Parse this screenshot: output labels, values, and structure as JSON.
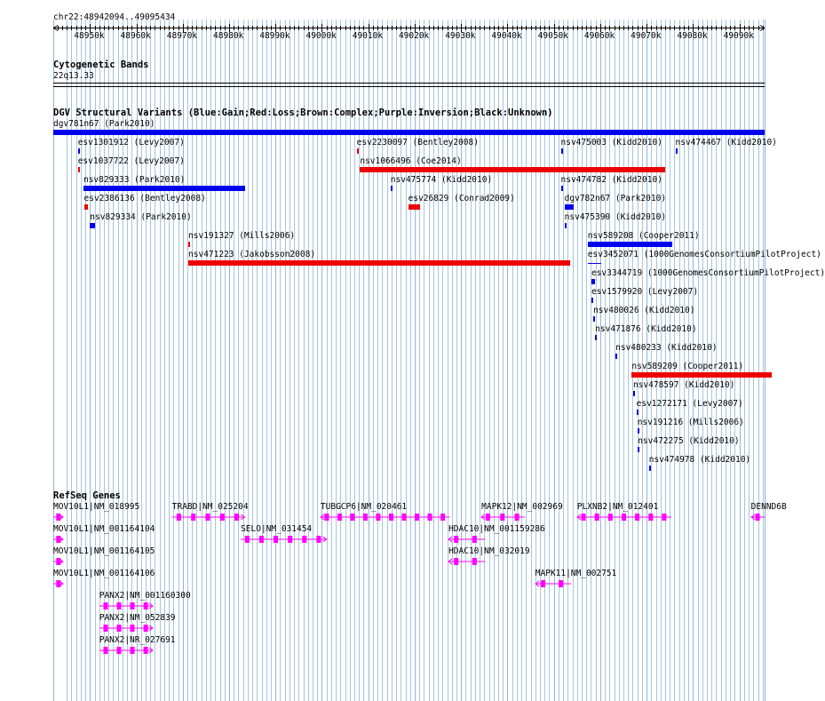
{
  "colors": {
    "gain": "#0000ee",
    "loss": "#ee0000",
    "gene": "#ff00ff",
    "grid": "#a7c5dd",
    "track_line": "#000000"
  },
  "ruler": {
    "location": "chr22:48942094..49095434",
    "ticks": [
      "48950k",
      "48960k",
      "48970k",
      "48980k",
      "48990k",
      "49000k",
      "49010k",
      "49020k",
      "49030k",
      "49040k",
      "49050k",
      "49060k",
      "49070k",
      "49080k",
      "49090k"
    ]
  },
  "cytobands": {
    "title": "Cytogenetic Bands",
    "band": "22q13.33"
  },
  "dgv": {
    "title": "DGV Structural Variants (Blue:Gain;Red:Loss;Brown:Complex;Purple:Inversion;Black:Unknown)",
    "variants": [
      {
        "label": "dgv781n67 (Park2010)",
        "type": "gain",
        "row": 0,
        "start": 48942094,
        "end": 49095434
      },
      {
        "label": "esv1301912 (Levy2007)",
        "type": "gain",
        "row": 1,
        "start": 48947400,
        "end": 48947700
      },
      {
        "label": "esv2230097 (Bentley2008)",
        "type": "loss",
        "row": 1,
        "start": 49007500,
        "end": 49007900
      },
      {
        "label": "nsv475003 (Kidd2010)",
        "type": "gain",
        "row": 1,
        "start": 49051500,
        "end": 49051800
      },
      {
        "label": "nsv474467 (Kidd2010)",
        "type": "gain",
        "row": 1,
        "start": 49076200,
        "end": 49076500
      },
      {
        "label": "esv1037722 (Levy2007)",
        "type": "loss",
        "row": 2,
        "start": 48947400,
        "end": 48947700
      },
      {
        "label": "nsv1066496 (Coe2014)",
        "type": "loss",
        "row": 2,
        "start": 49008200,
        "end": 49074000
      },
      {
        "label": "nsv829333 (Park2010)",
        "type": "gain",
        "row": 3,
        "start": 48948600,
        "end": 48983500
      },
      {
        "label": "nsv475774 (Kidd2010)",
        "type": "gain",
        "row": 3,
        "start": 49014800,
        "end": 49015100
      },
      {
        "label": "nsv474782 (Kidd2010)",
        "type": "gain",
        "row": 3,
        "start": 49051500,
        "end": 49051800
      },
      {
        "label": "esv2386136 (Bentley2008)",
        "type": "loss",
        "row": 4,
        "start": 48948700,
        "end": 48949600
      },
      {
        "label": "esv26829 (Conrad2009)",
        "type": "loss",
        "row": 4,
        "start": 49018600,
        "end": 49021100
      },
      {
        "label": "dgv782n67 (Park2010)",
        "type": "gain",
        "row": 4,
        "start": 49052300,
        "end": 49054200
      },
      {
        "label": "nsv829334 (Park2010)",
        "type": "gain",
        "row": 5,
        "start": 48950000,
        "end": 48951100
      },
      {
        "label": "nsv475390 (Kidd2010)",
        "type": "gain",
        "row": 5,
        "start": 49052300,
        "end": 49052600
      },
      {
        "label": "nsv191327 (Mills2006)",
        "type": "loss",
        "row": 6,
        "start": 48971200,
        "end": 48971500
      },
      {
        "label": "nsv589208 (Cooper2011)",
        "type": "gain",
        "row": 6,
        "start": 49057300,
        "end": 49075500
      },
      {
        "label": "nsv471223 (Jakobsson2008)",
        "type": "loss",
        "row": 7,
        "start": 48971200,
        "end": 49053500
      },
      {
        "label": "esv3452071 (1000GenomesConsortiumPilotProject)",
        "type": "gain",
        "row": 7,
        "start": 49057300,
        "end": 49060300
      },
      {
        "label": "esv3344719 (1000GenomesConsortiumPilotProject)",
        "type": "gain",
        "row": 8,
        "start": 49058100,
        "end": 49058900
      },
      {
        "label": "esv1579920 (Levy2007)",
        "type": "gain",
        "row": 9,
        "start": 49058100,
        "end": 49058400
      },
      {
        "label": "nsv480026 (Kidd2010)",
        "type": "gain",
        "row": 10,
        "start": 49058500,
        "end": 49058800
      },
      {
        "label": "nsv471876 (Kidd2010)",
        "type": "gain",
        "row": 11,
        "start": 49058900,
        "end": 49059200
      },
      {
        "label": "nsv480233 (Kidd2010)",
        "type": "gain",
        "row": 12,
        "start": 49063300,
        "end": 49063600
      },
      {
        "label": "nsv589209 (Cooper2011)",
        "type": "loss",
        "row": 13,
        "start": 49066800,
        "end": 49097000
      },
      {
        "label": "nsv478597 (Kidd2010)",
        "type": "gain",
        "row": 14,
        "start": 49067100,
        "end": 49067400
      },
      {
        "label": "esv1272171 (Levy2007)",
        "type": "gain",
        "row": 15,
        "start": 49067800,
        "end": 49068100
      },
      {
        "label": "nsv191216 (Mills2006)",
        "type": "gain",
        "row": 16,
        "start": 49068000,
        "end": 49068300
      },
      {
        "label": "nsv472275 (Kidd2010)",
        "type": "gain",
        "row": 17,
        "start": 49068100,
        "end": 49068400
      },
      {
        "label": "nsv474978 (Kidd2010)",
        "type": "gain",
        "row": 18,
        "start": 49070500,
        "end": 49070800
      }
    ]
  },
  "refseq": {
    "title": "RefSeq Genes",
    "genes": [
      {
        "label": "MOV10L1|NM_018995",
        "row": 0,
        "start": 48942094,
        "end": 48944200,
        "strand": "+"
      },
      {
        "label": "TRABD|NM_025204",
        "row": 0,
        "start": 48967700,
        "end": 48983300,
        "strand": "+"
      },
      {
        "label": "TUBGCP6|NM_020461",
        "row": 0,
        "start": 48999700,
        "end": 49027500,
        "strand": "-"
      },
      {
        "label": "MAPK12|NM_002969",
        "row": 0,
        "start": 49034400,
        "end": 49043800,
        "strand": "-"
      },
      {
        "label": "PLXNB2|NM_012401",
        "row": 0,
        "start": 49055000,
        "end": 49075300,
        "strand": "-"
      },
      {
        "label": "DENND6B",
        "row": 0,
        "start": 49092500,
        "end": 49095434,
        "strand": "-"
      },
      {
        "label": "MOV10L1|NM_001164104",
        "row": 1,
        "start": 48942094,
        "end": 48944200,
        "strand": "+"
      },
      {
        "label": "SELO|NM_031454",
        "row": 1,
        "start": 48982500,
        "end": 49001000,
        "strand": "+"
      },
      {
        "label": "HDAC10|NM_001159286",
        "row": 1,
        "start": 49027300,
        "end": 49035200,
        "strand": "-"
      },
      {
        "label": "MOV10L1|NM_001164105",
        "row": 2,
        "start": 48942094,
        "end": 48944200,
        "strand": "+"
      },
      {
        "label": "HDAC10|NM_032019",
        "row": 2,
        "start": 49027300,
        "end": 49035200,
        "strand": "-"
      },
      {
        "label": "MOV10L1|NM_001164106",
        "row": 3,
        "start": 48942094,
        "end": 48944200,
        "strand": "+"
      },
      {
        "label": "MAPK11|NM_002751",
        "row": 3,
        "start": 49046000,
        "end": 49053700,
        "strand": "-"
      },
      {
        "label": "PANX2|NM_001160300",
        "row": 4,
        "start": 48952000,
        "end": 48963500,
        "strand": "+"
      },
      {
        "label": "PANX2|NM_052839",
        "row": 5,
        "start": 48952000,
        "end": 48963500,
        "strand": "+"
      },
      {
        "label": "PANX2|NR_027691",
        "row": 6,
        "start": 48952000,
        "end": 48963500,
        "strand": "+"
      }
    ]
  }
}
